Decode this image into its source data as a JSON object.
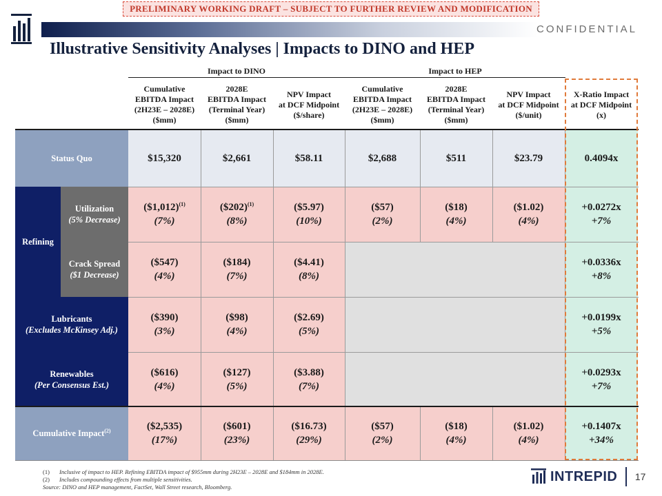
{
  "banner": "PRELIMINARY WORKING DRAFT – SUBJECT TO FURTHER REVIEW AND MODIFICATION",
  "confidential": "CONFIDENTIAL",
  "title": "Illustrative Sensitivity Analyses | Impacts to DINO and HEP",
  "groups": {
    "dino": "Impact to DINO",
    "hep": "Impact to HEP"
  },
  "columns": [
    [
      "Cumulative",
      "EBITDA Impact",
      "(2H23E – 2028E)",
      "($mm)"
    ],
    [
      "2028E",
      "EBITDA Impact",
      "(Terminal Year)",
      "($mm)"
    ],
    [
      "NPV Impact",
      "at DCF Midpoint",
      "($/share)"
    ],
    [
      "Cumulative",
      "EBITDA Impact",
      "(2H23E – 2028E)",
      "($mm)"
    ],
    [
      "2028E",
      "EBITDA Impact",
      "(Terminal Year)",
      "($mm)"
    ],
    [
      "NPV Impact",
      "at DCF Midpoint",
      "($/unit)"
    ],
    [
      "X-Ratio Impact",
      "at DCF Midpoint",
      "(x)"
    ]
  ],
  "rows": {
    "status_quo": {
      "label": "Status Quo",
      "values": [
        "$15,320",
        "$2,661",
        "$58.11",
        "$2,688",
        "$511",
        "$23.79",
        "0.4094x"
      ]
    },
    "refining": {
      "label": "Refining",
      "utilization": {
        "label": "Utilization",
        "sub": "(5% Decrease)",
        "values": [
          "($1,012)",
          "($202)",
          "($5.97)",
          "($57)",
          "($18)",
          "($1.02)",
          "+0.0272x"
        ],
        "pcts": [
          "(7%)",
          "(8%)",
          "(10%)",
          "(2%)",
          "(4%)",
          "(4%)",
          "+7%"
        ],
        "footnote_mark": "(1)"
      },
      "crack_spread": {
        "label": "Crack Spread",
        "sub": "($1 Decrease)",
        "values": [
          "($547)",
          "($184)",
          "($4.41)",
          "+0.0336x"
        ],
        "pcts": [
          "(4%)",
          "(7%)",
          "(8%)",
          "+8%"
        ]
      }
    },
    "lubricants": {
      "label": "Lubricants",
      "sub": "(Excludes McKinsey Adj.)",
      "values": [
        "($390)",
        "($98)",
        "($2.69)",
        "+0.0199x"
      ],
      "pcts": [
        "(3%)",
        "(4%)",
        "(5%)",
        "+5%"
      ]
    },
    "renewables": {
      "label": "Renewables",
      "sub": "(Per Consensus Est.)",
      "values": [
        "($616)",
        "($127)",
        "($3.88)",
        "+0.0293x"
      ],
      "pcts": [
        "(4%)",
        "(5%)",
        "(7%)",
        "+7%"
      ]
    },
    "cumulative": {
      "label": "Cumulative Impact",
      "label_mark": "(2)",
      "values": [
        "($2,535)",
        "($601)",
        "($16.73)",
        "($57)",
        "($18)",
        "($1.02)",
        "+0.1407x"
      ],
      "pcts": [
        "(17%)",
        "(23%)",
        "(29%)",
        "(2%)",
        "(4%)",
        "(4%)",
        "+34%"
      ]
    }
  },
  "footnotes": {
    "n1": "(1)",
    "f1": "Inclusive of impact to HEP. Refining EBITDA impact of $955mm during 2H23E – 2028E and $184mm in 2028E.",
    "n2": "(2)",
    "f2": "Includes compounding effects from multiple sensitivities.",
    "source": "Source: DINO and HEP management, FactSet, Wall Street research, Bloomberg."
  },
  "brand": {
    "name": "INTREPID",
    "page": "17"
  },
  "colors": {
    "navy": "#0f1f66",
    "steel": "#8ea1bf",
    "gray_label": "#6d6d6d",
    "status_bg": "#e6eaf1",
    "impact_bg": "#f6cfcc",
    "xratio_bg": "#d4efe4",
    "blank_bg": "#e0e0e0"
  }
}
